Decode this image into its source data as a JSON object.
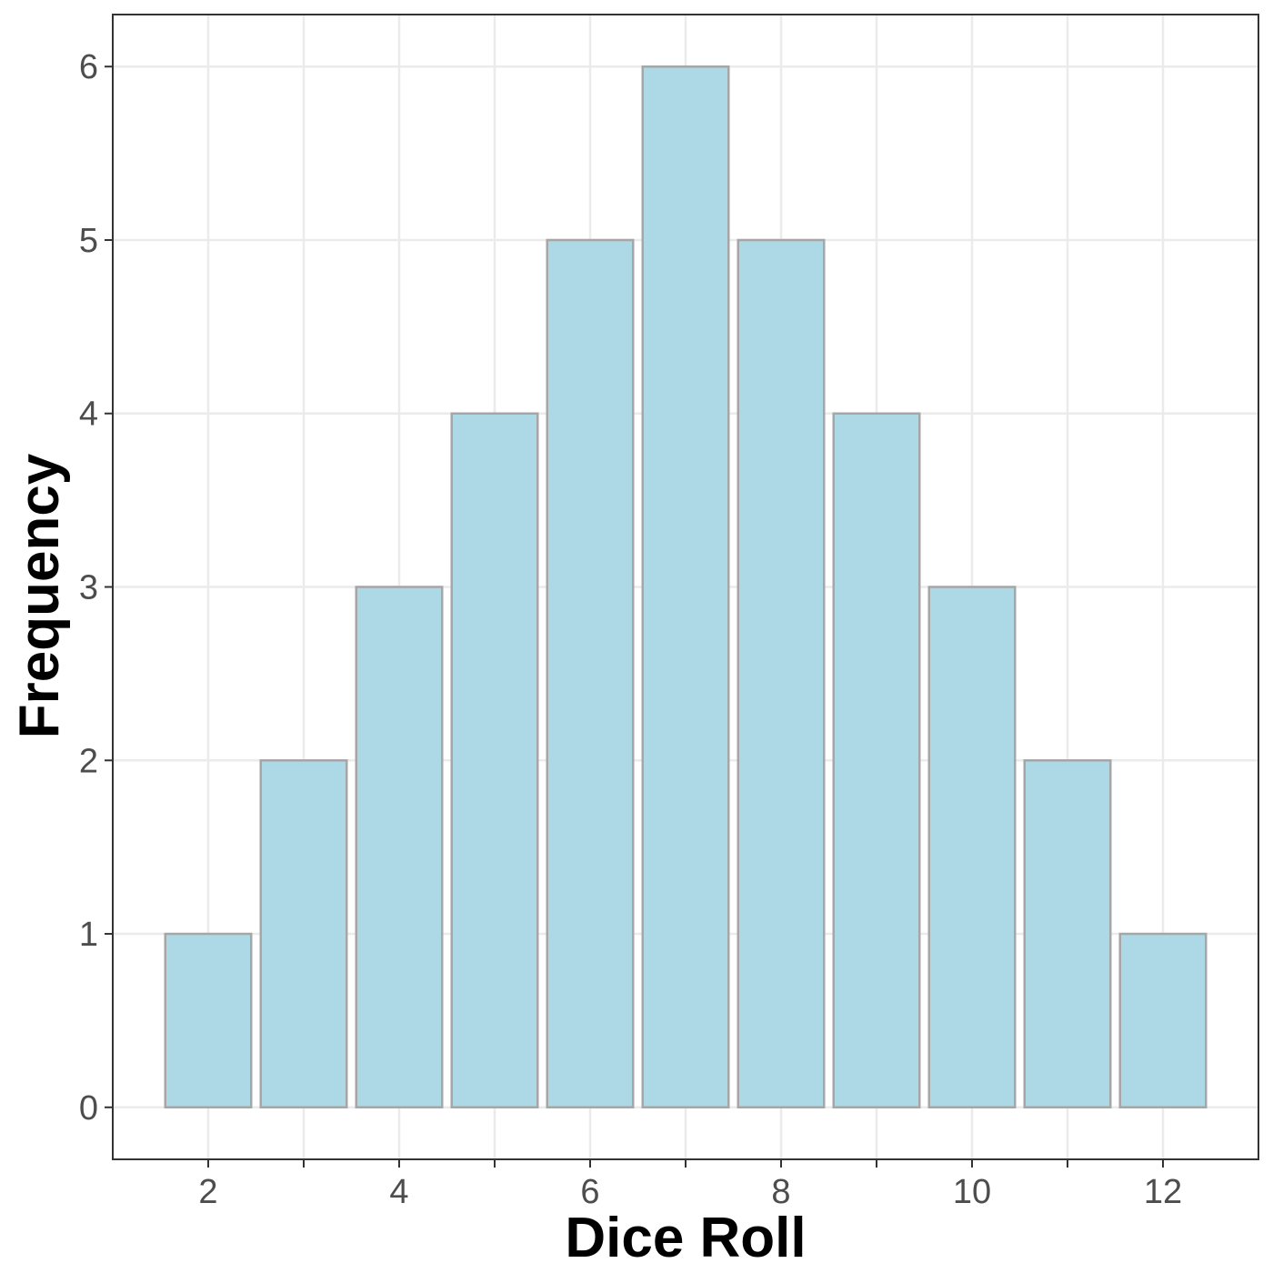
{
  "chart_data": {
    "type": "bar",
    "title": "",
    "xlabel": "Dice Roll",
    "ylabel": "Frequency",
    "categories": [
      2,
      3,
      4,
      5,
      6,
      7,
      8,
      9,
      10,
      11,
      12
    ],
    "values": [
      1,
      2,
      3,
      4,
      5,
      6,
      5,
      4,
      3,
      2,
      1
    ],
    "x_ticks": [
      2,
      4,
      6,
      8,
      10,
      12
    ],
    "y_ticks": [
      0,
      1,
      2,
      3,
      4,
      5,
      6
    ],
    "xlim": [
      1.0,
      13.0
    ],
    "ylim": [
      -0.3,
      6.3
    ],
    "grid": true,
    "colors": {
      "bar_fill": "#add8e6",
      "bar_stroke": "#a6a6a6",
      "grid": "#ebebeb",
      "panel_border": "#333333",
      "tick_text": "#4d4d4d"
    }
  }
}
